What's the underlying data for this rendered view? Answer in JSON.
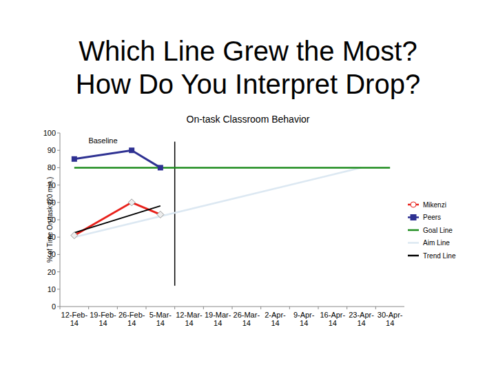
{
  "chart_data": {
    "type": "line",
    "title": "Which Line Grew the Most? How Do You Interpret Drop?",
    "subtitle": "On-task Classroom Behavior",
    "y_label": "% of Time On-task (20 min.)",
    "categories": [
      "12-Feb-14",
      "19-Feb-14",
      "26-Feb-14",
      "5-Mar-14",
      "12-Mar-14",
      "19-Mar-14",
      "26-Mar-14",
      "2-Apr-14",
      "9-Apr-14",
      "16-Apr-14",
      "23-Apr-14",
      "30-Apr-14"
    ],
    "series": [
      {
        "name": "Mikenzi",
        "color": "#e8211b",
        "marker": "diamond",
        "x": [
          "12-Feb-14",
          "26-Feb-14",
          "5-Mar-14"
        ],
        "values": [
          41,
          60,
          53
        ]
      },
      {
        "name": "Peers",
        "color": "#2e3192",
        "marker": "square",
        "x": [
          "12-Feb-14",
          "26-Feb-14",
          "5-Mar-14"
        ],
        "values": [
          85,
          90,
          80
        ]
      },
      {
        "name": "Goal Line",
        "color": "#1e8c1e",
        "x": [
          "12-Feb-14",
          "30-Apr-14"
        ],
        "values": [
          80,
          80
        ]
      },
      {
        "name": "Aim Line",
        "color": "#dce8f2",
        "x": [
          "12-Feb-14",
          "23-Apr-14"
        ],
        "values": [
          40,
          80
        ]
      },
      {
        "name": "Trend Line",
        "color": "#000000",
        "x": [
          "12-Feb-14",
          "5-Mar-14"
        ],
        "values": [
          42.5,
          58
        ]
      }
    ],
    "annotations": [
      {
        "text": "Baseline",
        "x": "19-Feb-14",
        "y": 94
      }
    ],
    "phase_line": {
      "after": "5-Mar-14",
      "from": 12,
      "to": 95
    },
    "ylim": [
      0,
      100
    ],
    "yticks": [
      0,
      10,
      20,
      30,
      40,
      50,
      60,
      70,
      80,
      90,
      100
    ],
    "grid": false,
    "legend": "right"
  }
}
